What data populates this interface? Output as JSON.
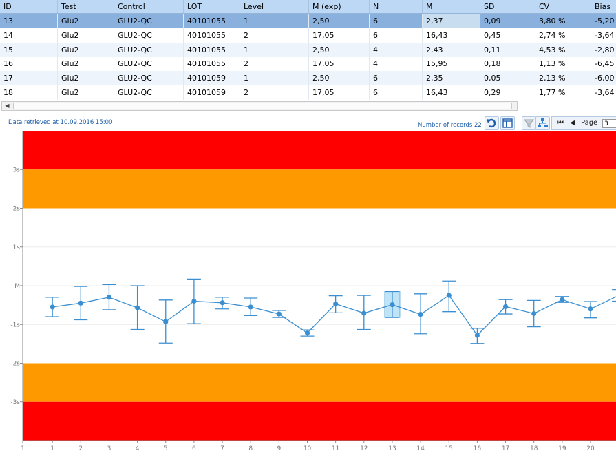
{
  "grid": {
    "columns": [
      "ID",
      "Test",
      "Control",
      "LOT",
      "Level",
      "M (exp)",
      "N",
      "M",
      "SD",
      "CV",
      "Bias"
    ],
    "rows": [
      [
        "13",
        "Glu2",
        "GLU2-QC",
        "40101055",
        "1",
        "2,50",
        "6",
        "2,37",
        "0,09",
        "3,80 %",
        "-5,20 %"
      ],
      [
        "14",
        "Glu2",
        "GLU2-QC",
        "40101055",
        "2",
        "17,05",
        "6",
        "16,43",
        "0,45",
        "2,74 %",
        "-3,64 %"
      ],
      [
        "15",
        "Glu2",
        "GLU2-QC",
        "40101055",
        "1",
        "2,50",
        "4",
        "2,43",
        "0,11",
        "4,53 %",
        "-2,80 %"
      ],
      [
        "16",
        "Glu2",
        "GLU2-QC",
        "40101055",
        "2",
        "17,05",
        "4",
        "15,95",
        "0,18",
        "1,13 %",
        "-6,45 %"
      ],
      [
        "17",
        "Glu2",
        "GLU2-QC",
        "40101059",
        "1",
        "2,50",
        "6",
        "2,35",
        "0,05",
        "2,13 %",
        "-6,00 %"
      ],
      [
        "18",
        "Glu2",
        "GLU2-QC",
        "40101059",
        "2",
        "17,05",
        "6",
        "16,43",
        "0,29",
        "1,77 %",
        "-3,64 %"
      ]
    ]
  },
  "status": {
    "retrieved": "Data retrieved at 10.09.2016 15:00",
    "records": "Number of records 22"
  },
  "pager": {
    "page_label": "Page",
    "page_value": "3"
  },
  "icons": {
    "undo": "undo-icon",
    "columns": "columns-icon",
    "filter": "filter-icon",
    "hierarchy": "hierarchy-icon",
    "first": "first-page-icon",
    "prev": "prev-page-icon"
  },
  "colors": {
    "red": "#ff0000",
    "orange": "#ff9900",
    "series": "#3b8fd0",
    "accent": "#1a5ba6"
  },
  "chart_data": {
    "type": "line",
    "x_ticks": [
      "1",
      "1",
      "2",
      "3",
      "4",
      "5",
      "6",
      "7",
      "8",
      "9",
      "10",
      "11",
      "12",
      "13",
      "14",
      "15",
      "16",
      "17",
      "18",
      "19",
      "20"
    ],
    "y_ticks": [
      "3s",
      "2s",
      "1s",
      "M",
      "-1s",
      "-2s",
      "-3s"
    ],
    "x": [
      1,
      2,
      3,
      4,
      5,
      6,
      7,
      8,
      9,
      10,
      11,
      12,
      13,
      14,
      15,
      16,
      17,
      18,
      19,
      20,
      21
    ],
    "y": [
      -0.55,
      -0.45,
      -0.3,
      -0.57,
      -0.93,
      -0.4,
      -0.44,
      -0.55,
      -0.73,
      -1.22,
      -0.47,
      -0.71,
      -0.49,
      -0.74,
      -0.25,
      -1.28,
      -0.54,
      -0.72,
      -0.36,
      -0.6,
      -0.25
    ],
    "y_low": [
      -0.8,
      -0.88,
      -0.62,
      -1.13,
      -1.48,
      -0.98,
      -0.6,
      -0.77,
      -0.82,
      -1.3,
      -0.7,
      -1.13,
      -0.82,
      -1.24,
      -0.67,
      -1.49,
      -0.73,
      -1.06,
      -0.43,
      -0.83,
      -0.4
    ],
    "y_high": [
      -0.3,
      -0.02,
      0.03,
      0.0,
      -0.37,
      0.17,
      -0.3,
      -0.32,
      -0.64,
      -1.14,
      -0.26,
      -0.25,
      -0.15,
      -0.21,
      0.12,
      -1.1,
      -0.36,
      -0.38,
      -0.28,
      -0.41,
      -0.1
    ],
    "selected_x": 13,
    "ylim": [
      -4,
      4
    ],
    "xlim": [
      0,
      21
    ],
    "bands": [
      {
        "from": 3,
        "to": 4,
        "color": "#ff0000"
      },
      {
        "from": 2,
        "to": 3,
        "color": "#ff9900"
      },
      {
        "from": -3,
        "to": -2,
        "color": "#ff9900"
      },
      {
        "from": -4,
        "to": -3,
        "color": "#ff0000"
      }
    ]
  }
}
